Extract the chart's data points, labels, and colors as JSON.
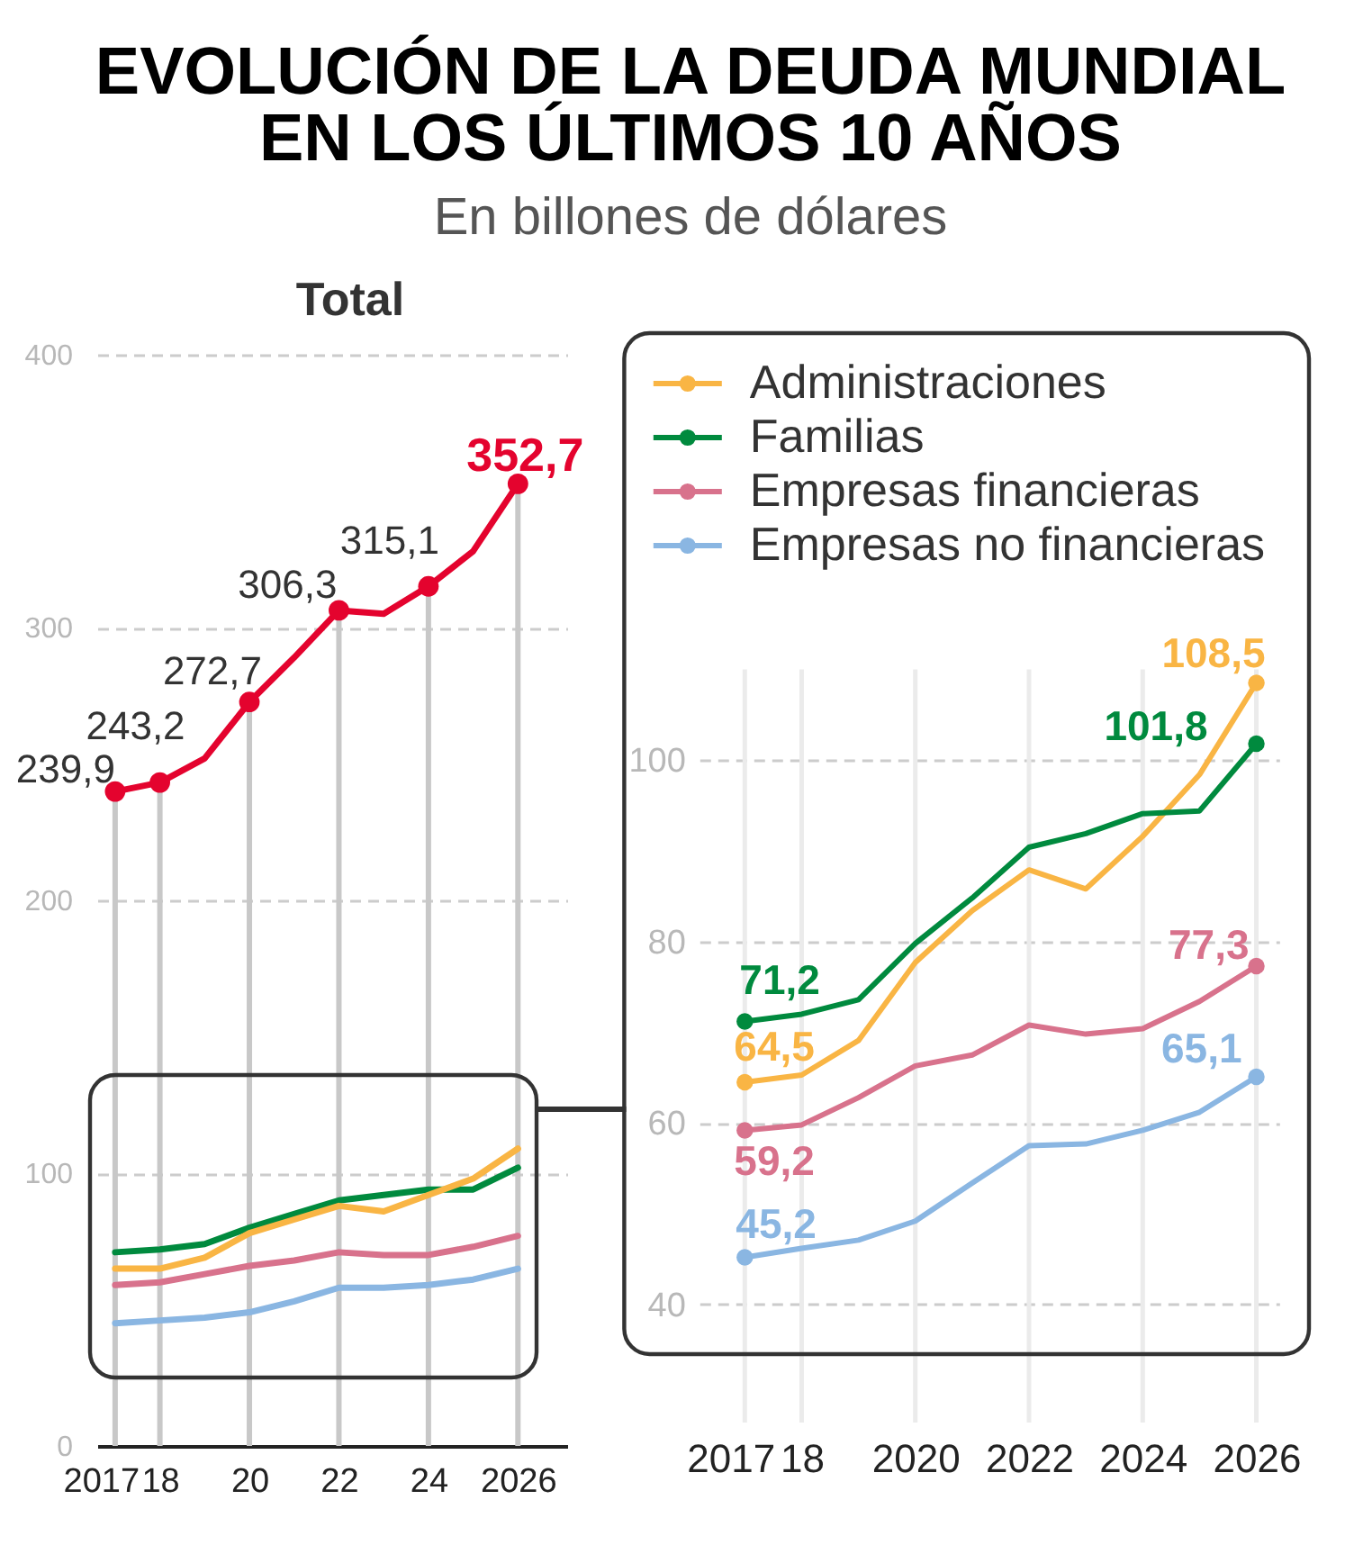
{
  "chart_data": [
    {
      "type": "other",
      "title": "EVOLUCIÓN DE LA DEUDA MUNDIAL EN LOS ÚLTIMOS 10 AÑOS",
      "subtitle": "En billones de dólares"
    },
    {
      "type": "line",
      "title": "Total",
      "x": [
        2017,
        2018,
        2019,
        2020,
        2021,
        2022,
        2023,
        2024,
        2025,
        2026
      ],
      "xlim": [
        2016.6,
        2027.1
      ],
      "xticks": [
        2017,
        {
          "value": 2018,
          "label": "18"
        },
        {
          "value": 2020,
          "label": "20"
        },
        {
          "value": 2022,
          "label": "22"
        },
        {
          "value": 2024,
          "label": "24"
        },
        2026
      ],
      "ylim": [
        0,
        400
      ],
      "yticks": [
        0,
        100,
        200,
        300,
        400
      ],
      "grid": true,
      "series": [
        {
          "color": "#e4032e",
          "values": [
            239.9,
            243.2,
            252,
            272.7,
            289,
            306.3,
            305,
            315.1,
            328,
            352.7
          ],
          "value_labels": [
            "239,9",
            "243,2",
            null,
            "272,7",
            null,
            "306,3",
            null,
            "315,1",
            null,
            "352,7"
          ]
        },
        {
          "color": "#f9b544",
          "values": [
            65,
            65,
            69,
            78,
            83,
            88,
            86,
            92,
            98,
            109
          ]
        },
        {
          "color": "#008a3e",
          "values": [
            71,
            72,
            74,
            80,
            85,
            90,
            92,
            94,
            94,
            102
          ]
        },
        {
          "color": "#d8728c",
          "values": [
            59,
            60,
            63,
            66,
            68,
            71,
            70,
            70,
            73,
            77
          ]
        },
        {
          "color": "#8ab6e2",
          "values": [
            45,
            46,
            47,
            49,
            53,
            58,
            58,
            59,
            61,
            65
          ]
        },
        {
          "type": "scatter",
          "color": "#e4032e",
          "x": [
            2017,
            2018,
            2020,
            2022,
            2024,
            2026
          ],
          "values": [
            239.9,
            243.2,
            272.7,
            306.3,
            315.1,
            352.7
          ]
        }
      ]
    },
    {
      "type": "line",
      "x": [
        2017,
        2018,
        2019,
        2020,
        2021,
        2022,
        2023,
        2024,
        2025,
        2026
      ],
      "xlim": [
        2016.2,
        2026.4
      ],
      "xticks": [
        2017,
        {
          "value": 2018,
          "label": "18"
        },
        2020,
        2022,
        2024,
        2026
      ],
      "ylim": [
        27,
        110
      ],
      "yticks": [
        40,
        60,
        80,
        100
      ],
      "grid": true,
      "legend": "top left",
      "series": [
        {
          "name": "Administraciones",
          "color": "#f9b544",
          "values": [
            64.5,
            65.3,
            69.1,
            77.7,
            83.4,
            87.9,
            85.8,
            91.6,
            98.4,
            108.5
          ],
          "value_labels": [
            "64,5",
            null,
            null,
            null,
            null,
            null,
            null,
            null,
            null,
            "108,5"
          ]
        },
        {
          "name": "Familias",
          "color": "#008a3e",
          "values": [
            71.2,
            72.0,
            73.6,
            79.8,
            84.8,
            90.4,
            91.9,
            94.1,
            94.4,
            101.8
          ],
          "value_labels": [
            "71,2",
            null,
            null,
            null,
            null,
            null,
            null,
            null,
            null,
            "101,8"
          ]
        },
        {
          "name": "Empresas financieras",
          "color": "#d8728c",
          "values": [
            59.2,
            59.8,
            62.8,
            66.3,
            67.5,
            70.8,
            69.8,
            70.4,
            73.4,
            77.3
          ],
          "value_labels": [
            "59,2",
            null,
            null,
            null,
            null,
            null,
            null,
            null,
            null,
            "77,3"
          ]
        },
        {
          "name": "Empresas no financieras",
          "color": "#8ab6e2",
          "values": [
            45.2,
            46.2,
            47.1,
            49.2,
            53.4,
            57.5,
            57.7,
            59.2,
            61.2,
            65.1
          ],
          "value_labels": [
            "45,2",
            null,
            null,
            null,
            null,
            null,
            null,
            null,
            null,
            "65,1"
          ]
        },
        {
          "type": "scatter",
          "color": "#f9b544",
          "x": [
            2017,
            2026
          ],
          "values": [
            64.5,
            108.5
          ]
        },
        {
          "type": "scatter",
          "color": "#008a3e",
          "x": [
            2017,
            2026
          ],
          "values": [
            71.2,
            101.8
          ]
        },
        {
          "type": "scatter",
          "color": "#d8728c",
          "x": [
            2017,
            2026
          ],
          "values": [
            59.2,
            77.3
          ]
        },
        {
          "type": "scatter",
          "color": "#8ab6e2",
          "x": [
            2017,
            2026
          ],
          "values": [
            45.2,
            65.1
          ]
        }
      ]
    }
  ]
}
